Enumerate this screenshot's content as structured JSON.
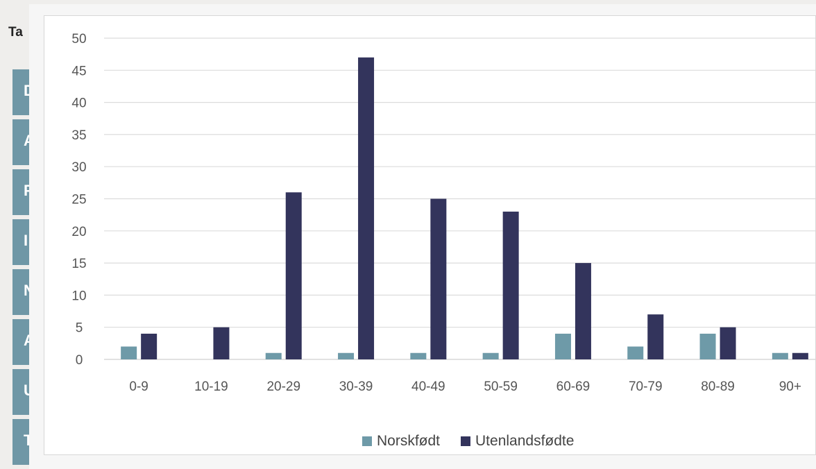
{
  "background": {
    "title_fragment": "Ta",
    "row_letters": [
      "D",
      "A",
      "F",
      "I",
      "N",
      "A",
      "U",
      "T"
    ],
    "row_color": "#6f97a6"
  },
  "chart_data": {
    "type": "bar",
    "categories": [
      "0-9",
      "10-19",
      "20-29",
      "30-39",
      "40-49",
      "50-59",
      "60-69",
      "70-79",
      "80-89",
      "90+"
    ],
    "series": [
      {
        "name": "Norskfødt",
        "color": "#6e9aa8",
        "values": [
          2,
          0,
          1,
          1,
          1,
          1,
          4,
          2,
          4,
          1
        ]
      },
      {
        "name": "Utenlandsfødte",
        "color": "#33345c",
        "values": [
          4,
          5,
          26,
          47,
          25,
          23,
          15,
          7,
          5,
          1
        ]
      }
    ],
    "yticks": [
      0,
      5,
      10,
      15,
      20,
      25,
      30,
      35,
      40,
      45,
      50
    ],
    "ylim": [
      0,
      50
    ],
    "title": "",
    "xlabel": "",
    "ylabel": "",
    "grid": true,
    "legend_position": "bottom-center"
  }
}
